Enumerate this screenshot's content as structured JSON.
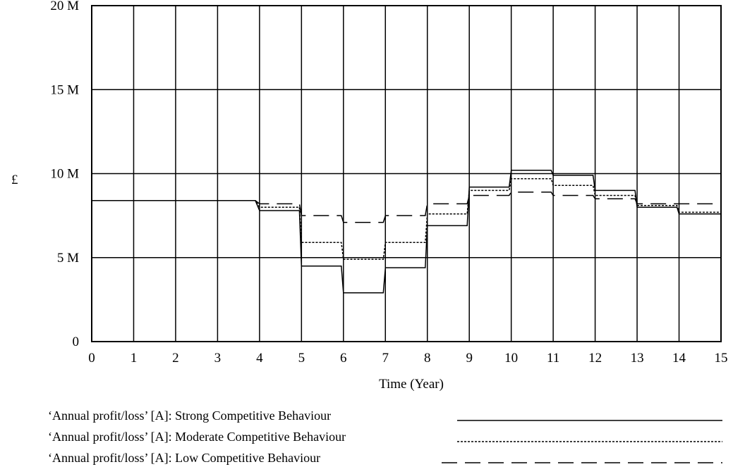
{
  "chart_data": {
    "type": "line",
    "title": "",
    "xlabel": "Time (Year)",
    "ylabel": "£",
    "xlim": [
      0,
      15
    ],
    "ylim": [
      0,
      20000000
    ],
    "x_ticks": [
      "0",
      "1",
      "2",
      "3",
      "4",
      "5",
      "6",
      "7",
      "8",
      "9",
      "10",
      "11",
      "12",
      "13",
      "14",
      "15"
    ],
    "y_ticks": [
      {
        "value": 0,
        "label": "0"
      },
      {
        "value": 5000000,
        "label": "5 M"
      },
      {
        "value": 10000000,
        "label": "10 M"
      },
      {
        "value": 15000000,
        "label": "15 M"
      },
      {
        "value": 20000000,
        "label": "20 M"
      }
    ],
    "grid": true,
    "legend_position": "bottom",
    "series": [
      {
        "name": "‘Annual profit/loss’ [A]: Strong Competitive Behaviour",
        "style": "solid",
        "x": [
          0,
          3.9,
          4.0,
          4.95,
          5.0,
          5.95,
          6.0,
          6.95,
          7.0,
          7.95,
          8.0,
          8.95,
          9.0,
          9.95,
          10.0,
          10.95,
          11.0,
          11.95,
          12.0,
          12.95,
          13.0,
          13.95,
          14.0,
          15.0
        ],
        "y": [
          8400000,
          8400000,
          7800000,
          7800000,
          4500000,
          4500000,
          2900000,
          2900000,
          4400000,
          4400000,
          6900000,
          6900000,
          9200000,
          9200000,
          10200000,
          10200000,
          9900000,
          9900000,
          9000000,
          9000000,
          8000000,
          8000000,
          7600000,
          7600000
        ]
      },
      {
        "name": "‘Annual profit/loss’ [A]: Moderate Competitive Behaviour",
        "style": "dotted",
        "x": [
          0,
          3.9,
          4.0,
          4.95,
          5.0,
          5.95,
          6.0,
          6.95,
          7.0,
          7.95,
          8.0,
          8.95,
          9.0,
          9.95,
          10.0,
          10.95,
          11.0,
          11.95,
          12.0,
          12.95,
          13.0,
          13.95,
          14.0,
          15.0
        ],
        "y": [
          8400000,
          8400000,
          8000000,
          8000000,
          5900000,
          5900000,
          4900000,
          4900000,
          5900000,
          5900000,
          7600000,
          7600000,
          9000000,
          9000000,
          9700000,
          9700000,
          9300000,
          9300000,
          8700000,
          8700000,
          8100000,
          8100000,
          7700000,
          7700000
        ]
      },
      {
        "name": "‘Annual profit/loss’ [A]: Low Competitive Behaviour",
        "style": "dashed",
        "x": [
          0,
          3.9,
          4.0,
          4.95,
          5.0,
          5.95,
          6.0,
          6.95,
          7.0,
          7.95,
          8.0,
          8.95,
          9.0,
          9.95,
          10.0,
          10.95,
          11.0,
          11.95,
          12.0,
          12.95,
          13.0,
          13.95,
          14.0,
          15.0
        ],
        "y": [
          8400000,
          8400000,
          8200000,
          8200000,
          7500000,
          7500000,
          7100000,
          7100000,
          7500000,
          7500000,
          8200000,
          8200000,
          8700000,
          8700000,
          8900000,
          8900000,
          8700000,
          8700000,
          8500000,
          8500000,
          8200000,
          8200000,
          8200000,
          8200000
        ]
      }
    ]
  }
}
